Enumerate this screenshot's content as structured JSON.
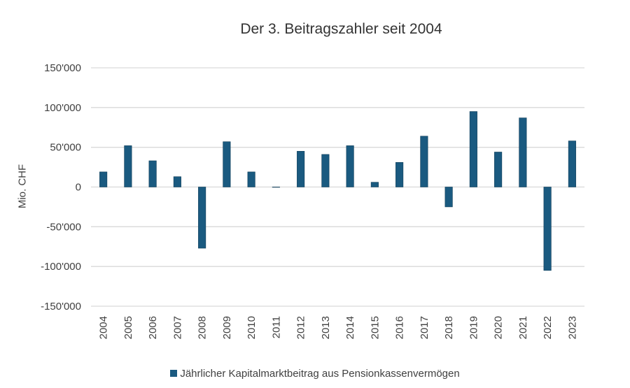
{
  "chart_data": {
    "type": "bar",
    "title": "Der 3. Beitragszahler seit 2004",
    "xlabel": "",
    "ylabel": "Mio. CHF",
    "ylim": [
      -150000,
      150000
    ],
    "yticks": [
      150000,
      100000,
      50000,
      0,
      -50000,
      -100000,
      -150000
    ],
    "ytick_labels": [
      "150'000",
      "100'000",
      "50'000",
      "0",
      "-50'000",
      "-100'000",
      "-150'000"
    ],
    "grid": true,
    "legend_position": "bottom",
    "categories": [
      "2004",
      "2005",
      "2006",
      "2007",
      "2008",
      "2009",
      "2010",
      "2011",
      "2012",
      "2013",
      "2014",
      "2015",
      "2016",
      "2017",
      "2018",
      "2019",
      "2020",
      "2021",
      "2022",
      "2023"
    ],
    "series": [
      {
        "name": "Jährlicher Kapitalmarktbeitrag aus Pensionkassenvermögen",
        "color": "#1a5a80",
        "values": [
          19000,
          52000,
          33000,
          13000,
          -77000,
          57000,
          19000,
          0,
          45000,
          41000,
          52000,
          6000,
          31000,
          64000,
          -25000,
          95000,
          44000,
          87000,
          -105000,
          58000
        ]
      }
    ]
  }
}
